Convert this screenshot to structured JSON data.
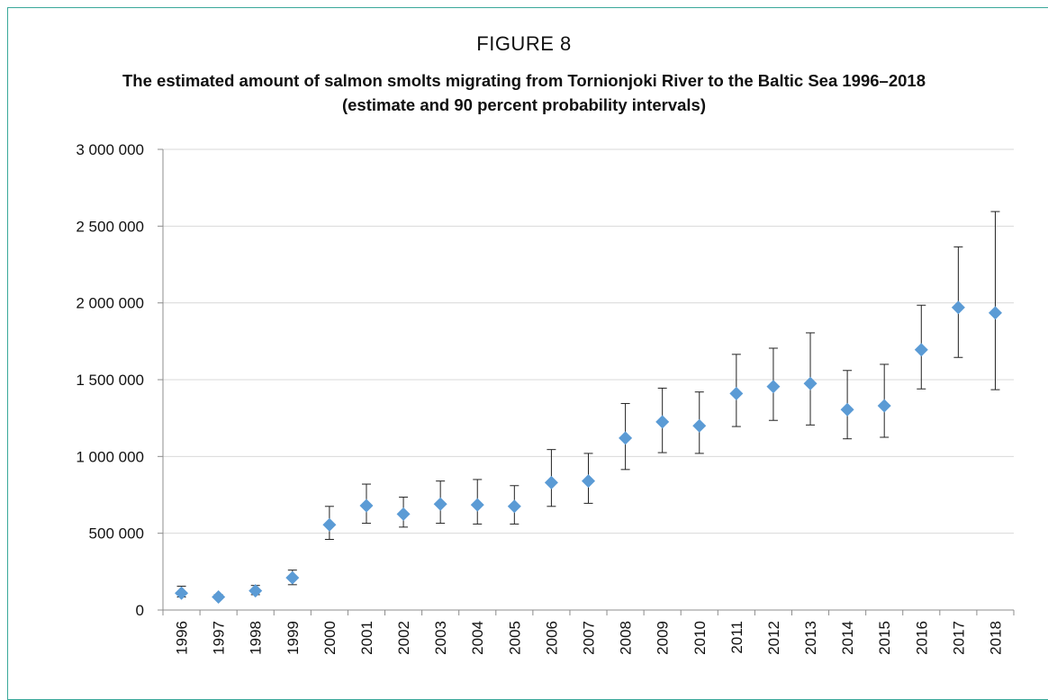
{
  "figure": {
    "label": "FIGURE 8",
    "title_line1": "The estimated amount of salmon smolts migrating from Tornionjoki River to the Baltic Sea 1996–2018",
    "title_line2": "(estimate and 90 percent probability intervals)"
  },
  "colors": {
    "frame": "#3aa89a",
    "marker": "#5b9bd5",
    "error_bar": "#222222",
    "grid": "#d9d9d9"
  },
  "chart_data": {
    "type": "scatter",
    "title": "The estimated amount of salmon smolts migrating from Tornionjoki River to the Baltic Sea 1996–2018 (estimate and 90 percent probability intervals)",
    "xlabel": "",
    "ylabel": "",
    "ylim": [
      0,
      3000000
    ],
    "y_ticks": [
      0,
      500000,
      1000000,
      1500000,
      2000000,
      2500000,
      3000000
    ],
    "y_tick_labels": [
      "0",
      "500 000",
      "1 000 000",
      "1 500 000",
      "2 000 000",
      "2 500 000",
      "3 000 000"
    ],
    "grid": true,
    "categories": [
      "1996",
      "1997",
      "1998",
      "1999",
      "2000",
      "2001",
      "2002",
      "2003",
      "2004",
      "2005",
      "2006",
      "2007",
      "2008",
      "2009",
      "2010",
      "2011",
      "2012",
      "2013",
      "2014",
      "2015",
      "2016",
      "2017",
      "2018"
    ],
    "series": [
      {
        "values": [
          110000,
          85000,
          125000,
          210000,
          555000,
          680000,
          625000,
          690000,
          685000,
          675000,
          830000,
          840000,
          1120000,
          1225000,
          1200000,
          1410000,
          1455000,
          1475000,
          1305000,
          1330000,
          1695000,
          1970000,
          1935000
        ],
        "lower": [
          85000,
          75000,
          100000,
          165000,
          460000,
          565000,
          540000,
          565000,
          560000,
          560000,
          675000,
          695000,
          915000,
          1025000,
          1020000,
          1195000,
          1235000,
          1205000,
          1115000,
          1125000,
          1440000,
          1645000,
          1435000
        ],
        "upper": [
          155000,
          100000,
          160000,
          260000,
          675000,
          820000,
          735000,
          840000,
          850000,
          810000,
          1045000,
          1020000,
          1345000,
          1445000,
          1420000,
          1665000,
          1705000,
          1805000,
          1560000,
          1600000,
          1985000,
          2365000,
          2595000
        ]
      }
    ]
  }
}
